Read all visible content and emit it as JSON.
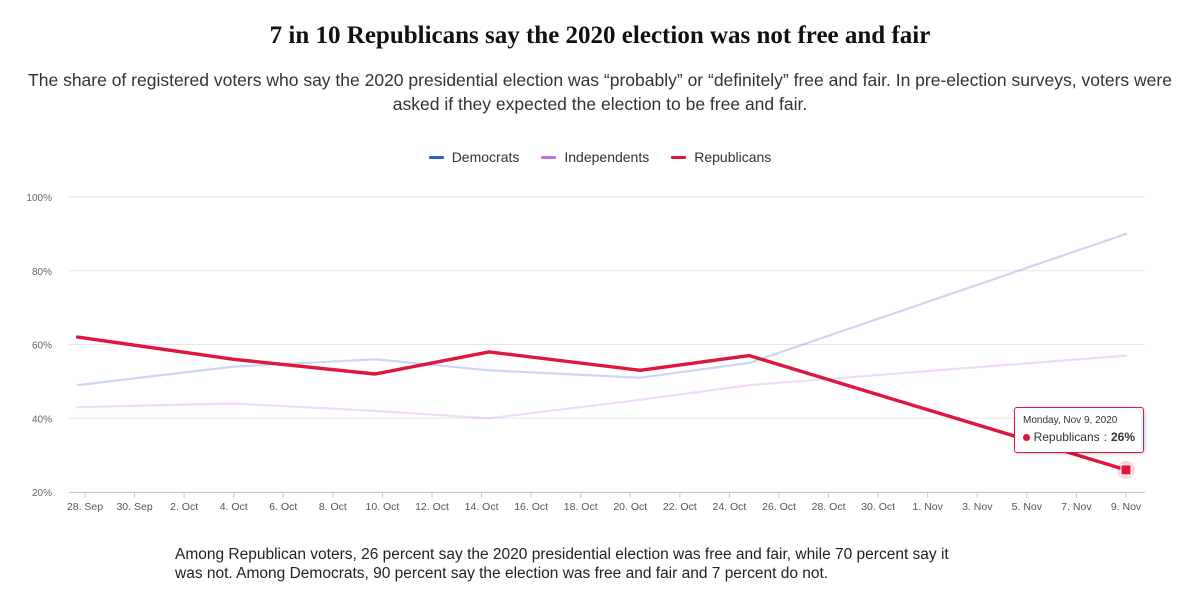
{
  "header": {
    "title": "7 in 10 Republicans say the 2020 election was not free and fair",
    "subtitle": "The share of registered voters who say the 2020 presidential election was “probably” or “definitely” free and fair. In pre-election surveys, voters were asked if they expected the election to be free and fair."
  },
  "legend": {
    "items": [
      {
        "label": "Democrats",
        "color": "#2f5fcf"
      },
      {
        "label": "Independents",
        "color": "#c86fe0"
      },
      {
        "label": "Republicans",
        "color": "#e0163d"
      }
    ]
  },
  "tooltip": {
    "date": "Monday, Nov 9, 2020",
    "series": "Republicans",
    "value": "26%"
  },
  "footnote": "Among Republican voters, 26 percent say the 2020 presidential election was free and fair, while 70 percent say it was not. Among Democrats, 90 percent say the election was free and fair and 7 percent do not.",
  "chart_data": {
    "type": "line",
    "title": "7 in 10 Republicans say the 2020 election was not free and fair",
    "xlabel": "",
    "ylabel": "",
    "ylim": [
      20,
      100
    ],
    "yticks": [
      "20%",
      "40%",
      "60%",
      "80%",
      "100%"
    ],
    "ytick_values": [
      20,
      40,
      60,
      80,
      100
    ],
    "xlim_days": [
      0,
      42
    ],
    "xticks": [
      "28. Sep",
      "30. Sep",
      "2. Oct",
      "4. Oct",
      "6. Oct",
      "8. Oct",
      "10. Oct",
      "12. Oct",
      "14. Oct",
      "16. Oct",
      "18. Oct",
      "20. Oct",
      "22. Oct",
      "24. Oct",
      "26. Oct",
      "28. Oct",
      "30. Oct",
      "1. Nov",
      "3. Nov",
      "5. Nov",
      "7. Nov",
      "9. Nov"
    ],
    "xtick_days": [
      0,
      2,
      4,
      6,
      8,
      10,
      12,
      14,
      16,
      18,
      20,
      22,
      24,
      26,
      28,
      30,
      32,
      34,
      36,
      38,
      40,
      42
    ],
    "x_day_zero": "2020-09-28",
    "series": [
      {
        "name": "Democrats",
        "color": "#2f5fcf",
        "days": [
          -0.3,
          6,
          11.7,
          16.3,
          22.4,
          26.8,
          42
        ],
        "values": [
          49,
          54,
          56,
          53,
          51,
          55,
          90
        ]
      },
      {
        "name": "Independents",
        "color": "#c86fe0",
        "days": [
          -0.3,
          6,
          11.7,
          16.3,
          22.4,
          26.8,
          42
        ],
        "values": [
          43,
          44,
          42,
          40,
          45,
          49,
          57
        ]
      },
      {
        "name": "Republicans",
        "color": "#e0163d",
        "days": [
          -0.3,
          6,
          11.7,
          16.3,
          22.4,
          26.8,
          42
        ],
        "values": [
          62,
          56,
          52,
          58,
          53,
          57,
          26
        ]
      }
    ],
    "highlight": {
      "series": "Republicans",
      "date": "Nov 9, 2020",
      "value": 26
    }
  }
}
